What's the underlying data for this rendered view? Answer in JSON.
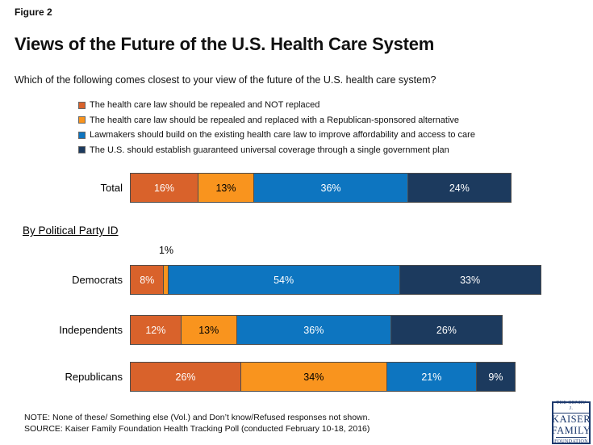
{
  "figure_label": "Figure 2",
  "title": "Views of the Future of the U.S. Health Care System",
  "subtitle": "Which of the following comes closest to your view of the future of the U.S. health care system?",
  "section_heading": "By Political Party ID",
  "note": "NOTE: None of these/ Something else (Vol.) and Don’t know/Refused responses not shown.",
  "source": "SOURCE: Kaiser Family Foundation Health Tracking Poll (conducted February 10-18, 2016)",
  "logo": {
    "line1": "THE HENRY J.",
    "line2": "KAISER",
    "line3": "FAMILY",
    "line4": "FOUNDATION"
  },
  "colors": {
    "repeal_not_replaced": "#D9622B",
    "repeal_replace_republican": "#F9941E",
    "build_on_existing_law": "#0D75C0",
    "single_government_plan": "#1C3A5E",
    "logo_navy": "#1E3A6E"
  },
  "chart_data": {
    "type": "bar",
    "orientation": "horizontal-stacked",
    "unit": "%",
    "xlim": [
      0,
      100
    ],
    "grid": false,
    "legend_position": "top",
    "series_labels": [
      "The health care law should be repealed and NOT replaced",
      "The health care law should be repealed and replaced with a Republican-sponsored alternative",
      "Lawmakers should build on the existing health care law to improve affordability and access to care",
      "The U.S. should establish guaranteed universal coverage through a single government plan"
    ],
    "series_colors": [
      "#D9622B",
      "#F9941E",
      "#0D75C0",
      "#1C3A5E"
    ],
    "categories": [
      "Total",
      "Democrats",
      "Independents",
      "Republicans"
    ],
    "rows": [
      {
        "label": "Total",
        "values": [
          16,
          13,
          36,
          24
        ]
      },
      {
        "label": "Democrats",
        "values": [
          8,
          1,
          54,
          33
        ]
      },
      {
        "label": "Independents",
        "values": [
          12,
          13,
          36,
          26
        ]
      },
      {
        "label": "Republicans",
        "values": [
          26,
          34,
          21,
          9
        ]
      }
    ],
    "annotations": [
      {
        "row": "Democrats",
        "segment_index": 1,
        "text": "1%",
        "position": "above-bar"
      }
    ]
  }
}
